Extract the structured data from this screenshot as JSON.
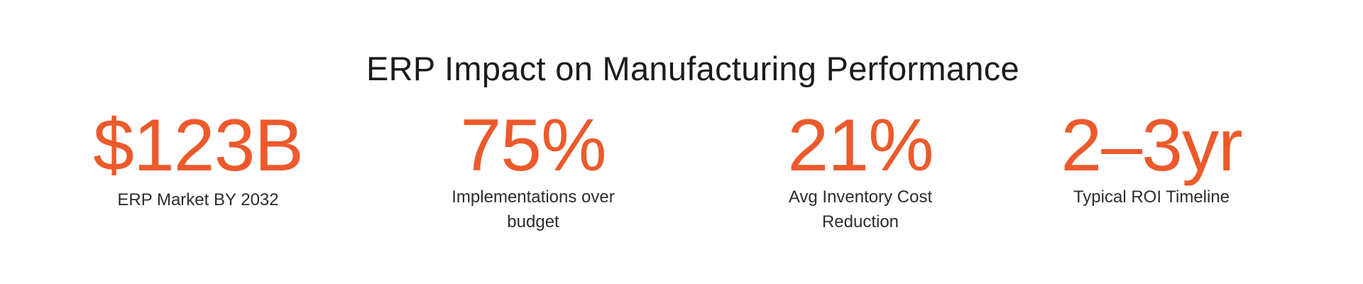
{
  "title": "ERP Impact on Manufacturing Performance",
  "accent_color": "#ec5a2c",
  "stats": [
    {
      "value": "$123B",
      "label": "ERP Market BY 2032"
    },
    {
      "value": "75%",
      "label": "Implementations over budget"
    },
    {
      "value": "21%",
      "label": "Avg Inventory Cost Reduction"
    },
    {
      "value": "2–3yr",
      "label": "Typical ROI Timeline"
    }
  ]
}
